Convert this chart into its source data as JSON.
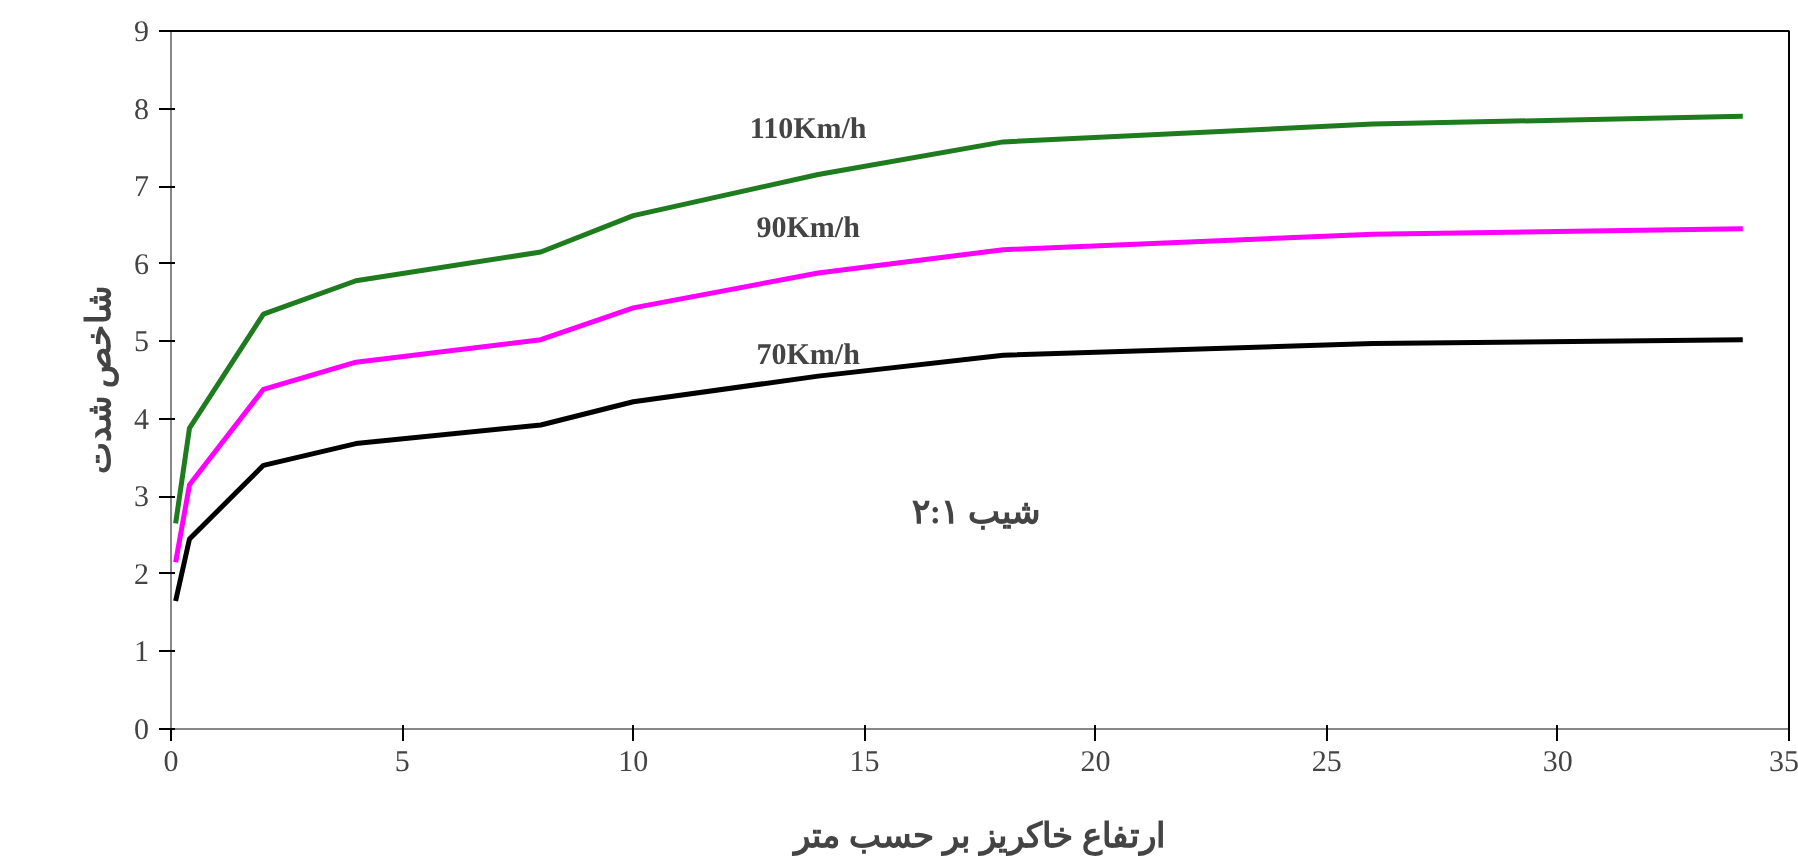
{
  "chart_data": {
    "type": "line",
    "xlabel": "ارتفاع خاکریز بر حسب متر",
    "ylabel": "شاخص شدت",
    "annotations": [
      "شیب  ۲:۱"
    ],
    "x": [
      0.1,
      0.4,
      2,
      4,
      8,
      10,
      14,
      18,
      26,
      34
    ],
    "series": [
      {
        "name": "110Km/h",
        "color": "#1e7b1e",
        "values": [
          2.65,
          3.88,
          5.35,
          5.78,
          6.15,
          6.62,
          7.15,
          7.57,
          7.8,
          7.9
        ]
      },
      {
        "name": "90Km/h",
        "color": "#ff00ff",
        "values": [
          2.15,
          3.15,
          4.38,
          4.73,
          5.02,
          5.43,
          5.88,
          6.18,
          6.38,
          6.45
        ]
      },
      {
        "name": "70Km/h",
        "color": "#000000",
        "values": [
          1.65,
          2.45,
          3.4,
          3.68,
          3.92,
          4.22,
          4.55,
          4.82,
          4.97,
          5.02
        ]
      }
    ],
    "xlim": [
      0,
      35
    ],
    "xticks": [
      0,
      5,
      10,
      15,
      20,
      25,
      30,
      35
    ],
    "ylim": [
      0,
      9
    ],
    "yticks": [
      0,
      1,
      2,
      3,
      4,
      5,
      6,
      7,
      8,
      9
    ],
    "grid": false,
    "marker": "none",
    "line_style": "solid"
  }
}
